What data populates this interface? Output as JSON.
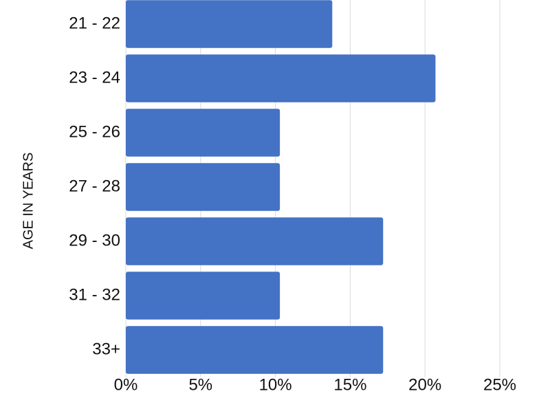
{
  "chart_data": {
    "type": "barh",
    "ylabel": "AGE IN YEARS",
    "categories": [
      "21 - 22",
      "23 - 24",
      "25 - 26",
      "27 - 28",
      "29 - 30",
      "31 - 32",
      "33+"
    ],
    "values": [
      13.8,
      20.7,
      10.3,
      10.3,
      17.2,
      10.3,
      17.2
    ],
    "color": "#4472c4",
    "xlim": [
      0,
      25
    ],
    "xticks": [
      {
        "value": 0,
        "label": "0%"
      },
      {
        "value": 5,
        "label": "5%"
      },
      {
        "value": 10,
        "label": "10%"
      },
      {
        "value": 15,
        "label": "15%"
      },
      {
        "value": 20,
        "label": "20%"
      },
      {
        "value": 25,
        "label": "25%"
      }
    ],
    "grid": true
  }
}
